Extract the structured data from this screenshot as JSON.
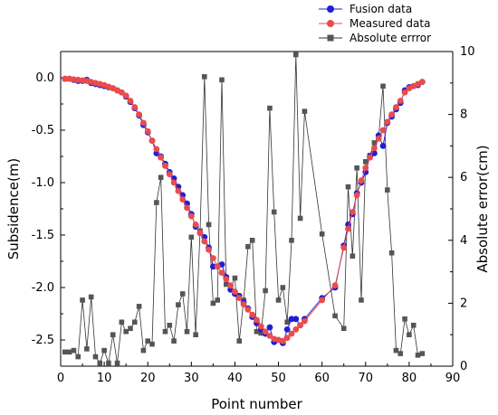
{
  "chart_data": {
    "type": "line",
    "xlabel": "Point number",
    "ylabel_left": "Subsidence(m)",
    "ylabel_right": "Absolute error(cm)",
    "xlim": [
      0,
      90
    ],
    "ylim_left": [
      -2.75,
      0.25
    ],
    "ylim_right": [
      0,
      10
    ],
    "x_ticks": [
      0,
      10,
      20,
      30,
      40,
      50,
      60,
      70,
      80,
      90
    ],
    "y_left_ticks": [
      0.0,
      -0.5,
      -1.0,
      -1.5,
      -2.0,
      -2.5
    ],
    "y_left_tick_labels": [
      "0.0",
      "-0.5",
      "-1.0",
      "-1.5",
      "-2.0",
      "-2.5"
    ],
    "y_right_ticks": [
      0,
      2,
      4,
      6,
      8,
      10
    ],
    "legend_position": "top-right",
    "colors": {
      "fusion": "#1f1fd6",
      "measured": "#e84c4c",
      "error": "#555555"
    },
    "series": [
      {
        "name": "Fusion data",
        "axis": "left",
        "marker": "circle",
        "x": [
          1,
          2,
          3,
          4,
          5,
          6,
          7,
          8,
          9,
          10,
          11,
          12,
          13,
          14,
          15,
          16,
          17,
          18,
          19,
          20,
          21,
          22,
          23,
          24,
          25,
          26,
          27,
          28,
          29,
          30,
          31,
          32,
          33,
          34,
          35,
          36,
          37,
          38,
          39,
          40,
          41,
          42,
          43,
          44,
          45,
          46,
          47,
          48,
          49,
          50,
          51,
          52,
          53,
          54,
          55,
          56,
          60,
          63,
          65,
          66,
          67,
          68,
          69,
          70,
          71,
          72,
          73,
          74,
          75,
          76,
          77,
          78,
          79,
          80,
          81,
          82,
          83
        ],
        "values": [
          -0.01,
          -0.01,
          -0.02,
          -0.03,
          -0.03,
          -0.02,
          -0.05,
          -0.06,
          -0.07,
          -0.08,
          -0.09,
          -0.1,
          -0.12,
          -0.14,
          -0.18,
          -0.23,
          -0.29,
          -0.36,
          -0.45,
          -0.52,
          -0.6,
          -0.72,
          -0.75,
          -0.82,
          -0.9,
          -0.96,
          -1.04,
          -1.12,
          -1.2,
          -1.3,
          -1.42,
          -1.48,
          -1.52,
          -1.62,
          -1.8,
          -1.8,
          -1.78,
          -1.9,
          -2.02,
          -2.06,
          -2.08,
          -2.14,
          -2.2,
          -2.28,
          -2.34,
          -2.4,
          -2.44,
          -2.38,
          -2.52,
          -2.5,
          -2.53,
          -2.4,
          -2.3,
          -2.3,
          -2.36,
          -2.3,
          -2.1,
          -2.0,
          -1.6,
          -1.4,
          -1.3,
          -1.1,
          -1.0,
          -0.9,
          -0.75,
          -0.72,
          -0.55,
          -0.65,
          -0.43,
          -0.37,
          -0.3,
          -0.24,
          -0.12,
          -0.09,
          -0.08,
          -0.07,
          -0.04
        ]
      },
      {
        "name": "Measured data",
        "axis": "left",
        "marker": "circle",
        "x": [
          1,
          2,
          3,
          4,
          5,
          6,
          7,
          8,
          9,
          10,
          11,
          12,
          13,
          14,
          15,
          16,
          17,
          18,
          19,
          20,
          21,
          22,
          23,
          24,
          25,
          26,
          27,
          28,
          29,
          30,
          31,
          32,
          33,
          34,
          35,
          36,
          37,
          38,
          39,
          40,
          41,
          42,
          43,
          44,
          45,
          46,
          47,
          48,
          49,
          50,
          51,
          52,
          53,
          54,
          55,
          56,
          60,
          63,
          65,
          66,
          67,
          68,
          69,
          70,
          71,
          72,
          73,
          74,
          75,
          76,
          77,
          78,
          79,
          80,
          81,
          82,
          83
        ],
        "values": [
          -0.01,
          -0.01,
          -0.015,
          -0.02,
          -0.025,
          -0.03,
          -0.04,
          -0.05,
          -0.06,
          -0.07,
          -0.085,
          -0.1,
          -0.12,
          -0.14,
          -0.17,
          -0.22,
          -0.28,
          -0.35,
          -0.43,
          -0.51,
          -0.6,
          -0.68,
          -0.76,
          -0.84,
          -0.92,
          -1.0,
          -1.08,
          -1.16,
          -1.24,
          -1.32,
          -1.4,
          -1.48,
          -1.56,
          -1.64,
          -1.72,
          -1.8,
          -1.86,
          -1.92,
          -1.98,
          -2.04,
          -2.1,
          -2.16,
          -2.21,
          -2.26,
          -2.31,
          -2.37,
          -2.42,
          -2.46,
          -2.49,
          -2.5,
          -2.51,
          -2.48,
          -2.44,
          -2.4,
          -2.36,
          -2.32,
          -2.12,
          -1.98,
          -1.62,
          -1.44,
          -1.28,
          -1.12,
          -0.98,
          -0.86,
          -0.76,
          -0.67,
          -0.58,
          -0.5,
          -0.42,
          -0.35,
          -0.28,
          -0.22,
          -0.14,
          -0.1,
          -0.08,
          -0.06,
          -0.04
        ]
      },
      {
        "name": "Absolute errror",
        "axis": "right",
        "marker": "square",
        "x": [
          1,
          2,
          3,
          4,
          5,
          6,
          7,
          8,
          9,
          10,
          11,
          12,
          13,
          14,
          15,
          16,
          17,
          18,
          19,
          20,
          21,
          22,
          23,
          24,
          25,
          26,
          27,
          28,
          29,
          30,
          31,
          32,
          33,
          34,
          35,
          36,
          37,
          38,
          39,
          40,
          41,
          42,
          43,
          44,
          45,
          46,
          47,
          48,
          49,
          50,
          51,
          52,
          53,
          54,
          55,
          56,
          60,
          63,
          65,
          66,
          67,
          68,
          69,
          70,
          71,
          72,
          73,
          74,
          75,
          76,
          77,
          78,
          79,
          80,
          81,
          82,
          83
        ],
        "values": [
          0.45,
          0.45,
          0.5,
          0.3,
          2.1,
          0.55,
          2.2,
          0.3,
          0.1,
          0.5,
          0.1,
          1.0,
          0.1,
          1.4,
          1.1,
          1.2,
          1.4,
          1.9,
          0.5,
          0.8,
          0.7,
          5.2,
          6.0,
          1.1,
          1.3,
          0.8,
          1.95,
          2.3,
          1.1,
          4.1,
          1.0,
          4.3,
          9.2,
          4.5,
          2.0,
          2.1,
          9.1,
          2.6,
          2.5,
          2.8,
          0.8,
          2.1,
          3.8,
          4.0,
          1.1,
          1.05,
          2.4,
          8.2,
          4.9,
          2.1,
          2.5,
          1.4,
          4.0,
          9.9,
          4.7,
          8.1,
          4.2,
          1.6,
          1.2,
          5.7,
          3.5,
          6.3,
          2.1,
          6.5,
          6.7,
          7.1,
          7.3,
          8.9,
          5.6,
          3.6,
          0.5,
          0.4,
          1.5,
          1.0,
          1.3,
          0.35,
          0.4
        ]
      }
    ]
  }
}
